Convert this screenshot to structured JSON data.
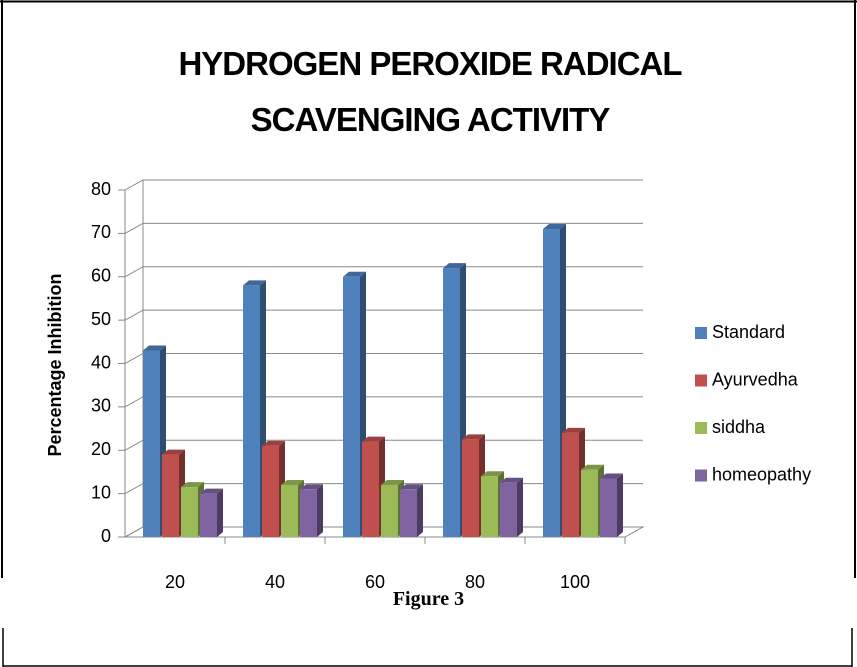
{
  "chart_data": {
    "type": "bar3d",
    "title": "HYDROGEN PEROXIDE RADICAL SCAVENGING ACTIVITY",
    "y_label": "Percentage Inhibition",
    "categories": [
      "20",
      "40",
      "60",
      "80",
      "100"
    ],
    "series": [
      {
        "name": "Standard",
        "color": "#4f81bd",
        "values": [
          43,
          58,
          60,
          62,
          71
        ]
      },
      {
        "name": "Ayurvedha",
        "color": "#c0504d",
        "values": [
          19,
          21,
          22,
          22.5,
          24
        ]
      },
      {
        "name": "siddha",
        "color": "#9bbb59",
        "values": [
          11.5,
          12,
          12,
          14,
          15.5
        ]
      },
      {
        "name": "homeopathy",
        "color": "#8064a2",
        "values": [
          10,
          11,
          11,
          12.5,
          13.5
        ]
      }
    ],
    "ylim": [
      0,
      80
    ],
    "yticks": [
      0,
      10,
      20,
      30,
      40,
      50,
      60,
      70,
      80
    ],
    "grid": true,
    "legend": "right"
  },
  "caption": "Figure 3"
}
